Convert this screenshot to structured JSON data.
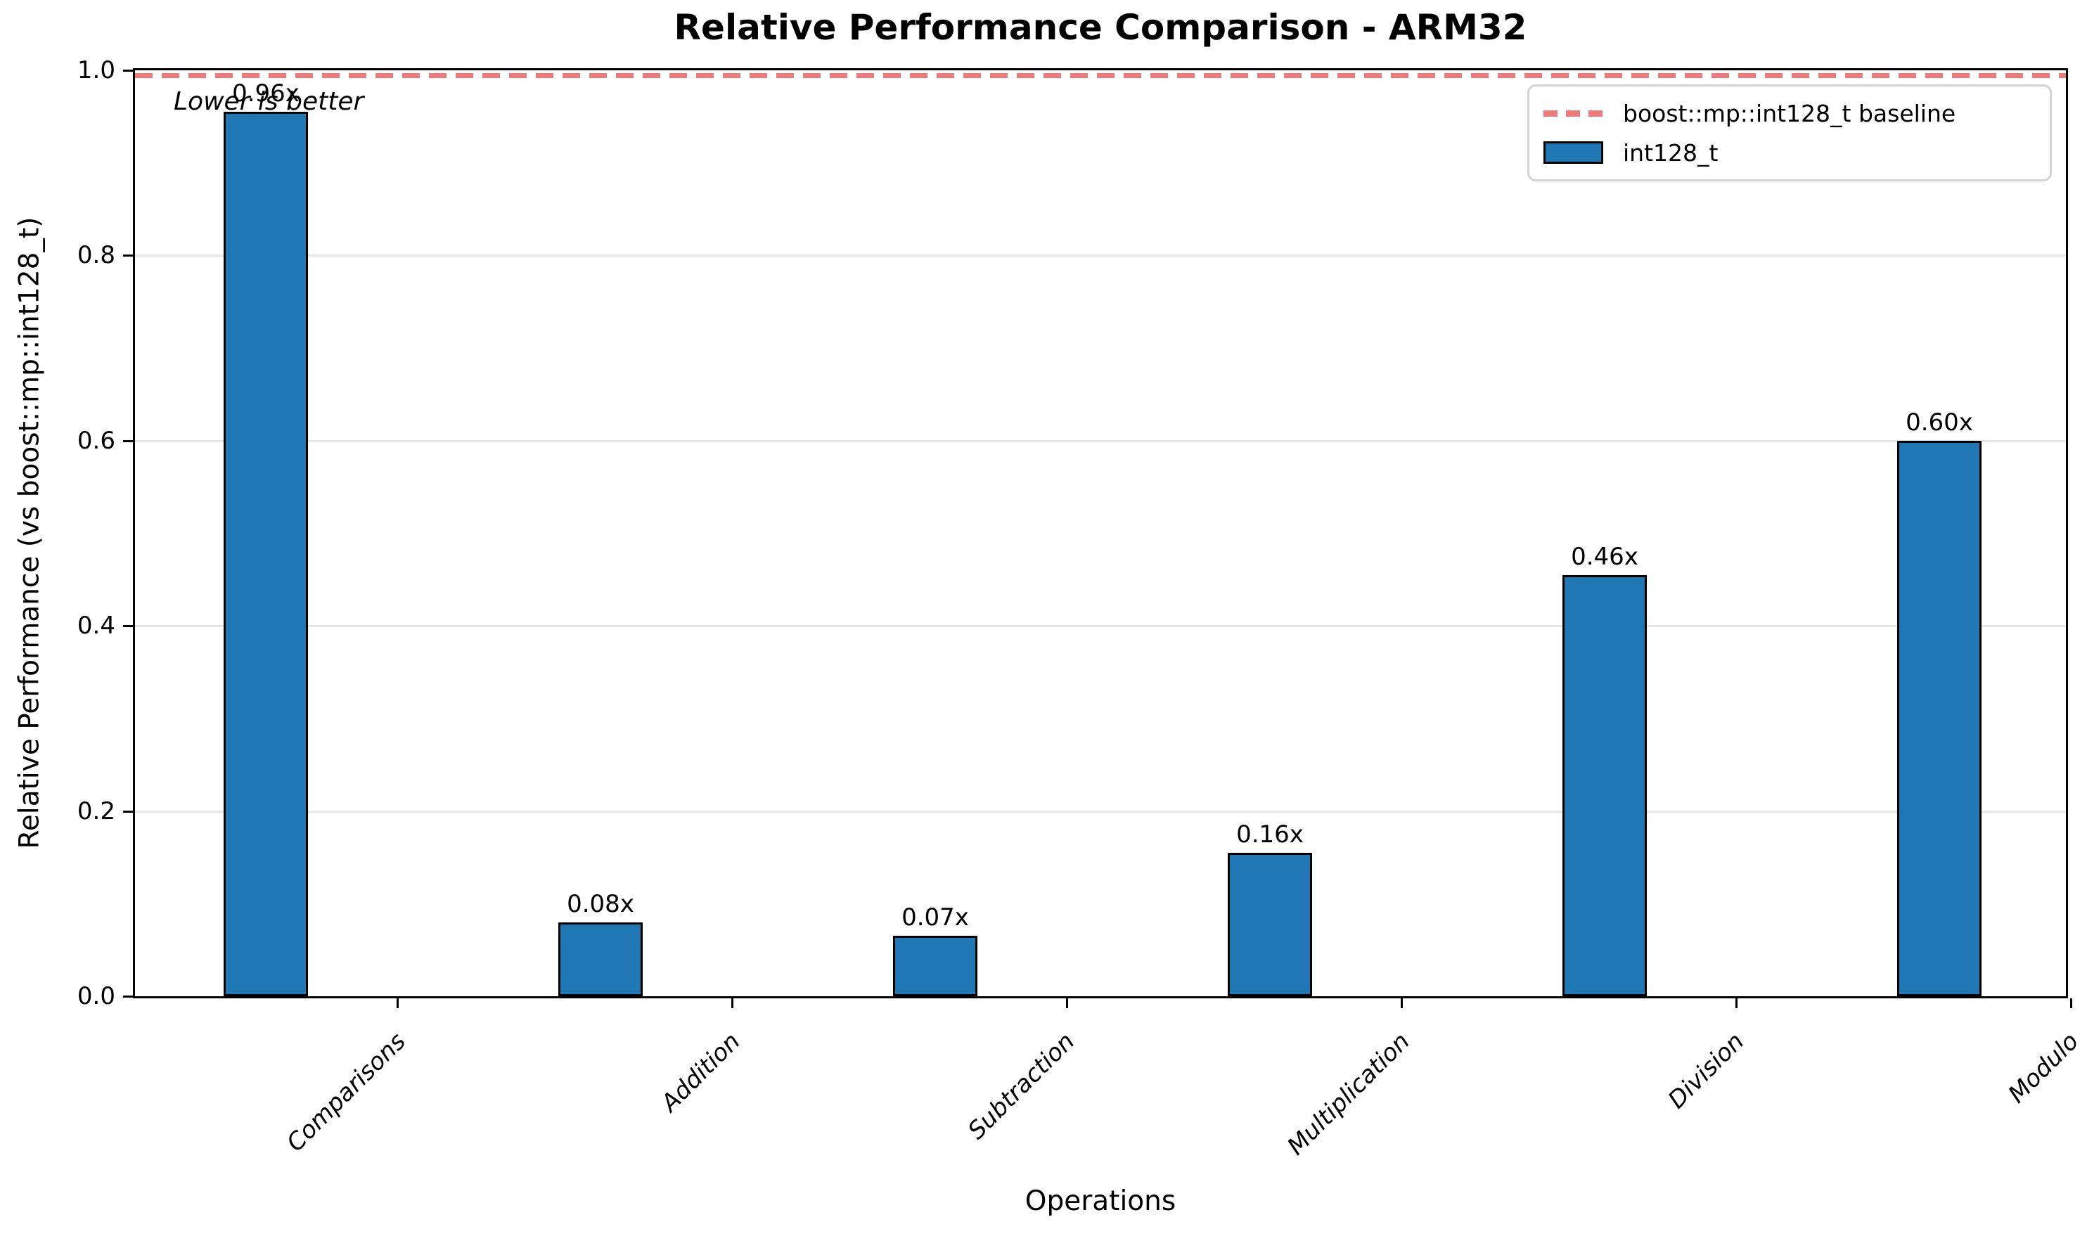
{
  "chart_data": {
    "type": "bar",
    "title": "Relative Performance Comparison - ARM32",
    "xlabel": "Operations",
    "ylabel": "Relative Performance (vs boost::mp::int128_t)",
    "categories": [
      "Comparisons",
      "Addition",
      "Subtraction",
      "Multiplication",
      "Division",
      "Modulo"
    ],
    "series": [
      {
        "name": "int128_t",
        "values": [
          0.955,
          0.08,
          0.065,
          0.155,
          0.455,
          0.6
        ],
        "color": "#1f77b4"
      }
    ],
    "bar_value_labels": [
      "0.96x",
      "0.08x",
      "0.07x",
      "0.16x",
      "0.46x",
      "0.60x"
    ],
    "baseline": {
      "value": 1.0,
      "label": "boost::mp::int128_t baseline",
      "style": "dashed",
      "color": "#ee7b7b"
    },
    "annotation": "Lower is better",
    "ylim": [
      0.0,
      1.0
    ],
    "ytick_labels": [
      "0.0",
      "0.2",
      "0.4",
      "0.6",
      "0.8",
      "1.0"
    ],
    "grid": "horizontal-only",
    "legend": {
      "position": "upper-right",
      "items": [
        {
          "label": "boost::mp::int128_t baseline",
          "marker": "dashed-line"
        },
        {
          "label": "int128_t",
          "marker": "filled-rect"
        }
      ]
    },
    "colors": {
      "bar_fill": "#1f77b4",
      "bar_edge": "#000000",
      "baseline_line": "#ee7b7b",
      "gridline": "#e8e8e8",
      "axis": "#000000",
      "legend_border": "#d3d3d3"
    }
  }
}
